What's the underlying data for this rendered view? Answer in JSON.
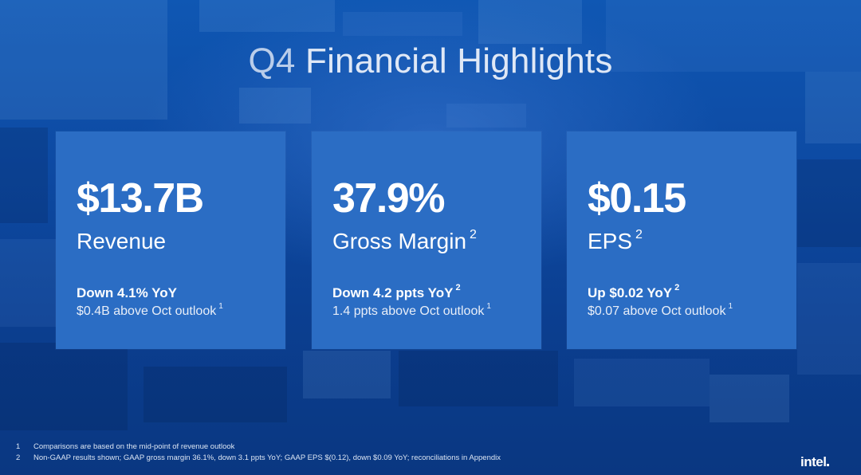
{
  "title": {
    "part1": "Q4",
    "part2": "Financial Highlights"
  },
  "cards": [
    {
      "value": "$13.7B",
      "label": "Revenue",
      "label_sup": "",
      "change": "Down 4.1% YoY",
      "change_sup": "",
      "outlook": "$0.4B above Oct outlook",
      "outlook_sup": "1"
    },
    {
      "value": "37.9%",
      "label": "Gross Margin",
      "label_sup": "2",
      "change": "Down 4.2 ppts YoY",
      "change_sup": "2",
      "outlook": "1.4 ppts above Oct outlook",
      "outlook_sup": "1"
    },
    {
      "value": "$0.15",
      "label": "EPS",
      "label_sup": "2",
      "change": "Up $0.02 YoY",
      "change_sup": "2",
      "outlook": "$0.07 above Oct outlook",
      "outlook_sup": "1"
    }
  ],
  "footnotes": [
    {
      "num": "1",
      "text": "Comparisons are based on the mid-point of revenue outlook"
    },
    {
      "num": "2",
      "text": "Non-GAAP results shown; GAAP gross margin 36.1%, down 3.1 ppts YoY; GAAP EPS $(0.12), down $0.09 YoY; reconciliations in Appendix"
    }
  ],
  "logo": "intel",
  "colors": {
    "background": "#0d4aa3",
    "card": "#2b6dc4",
    "title_q": "#b9cdea"
  }
}
